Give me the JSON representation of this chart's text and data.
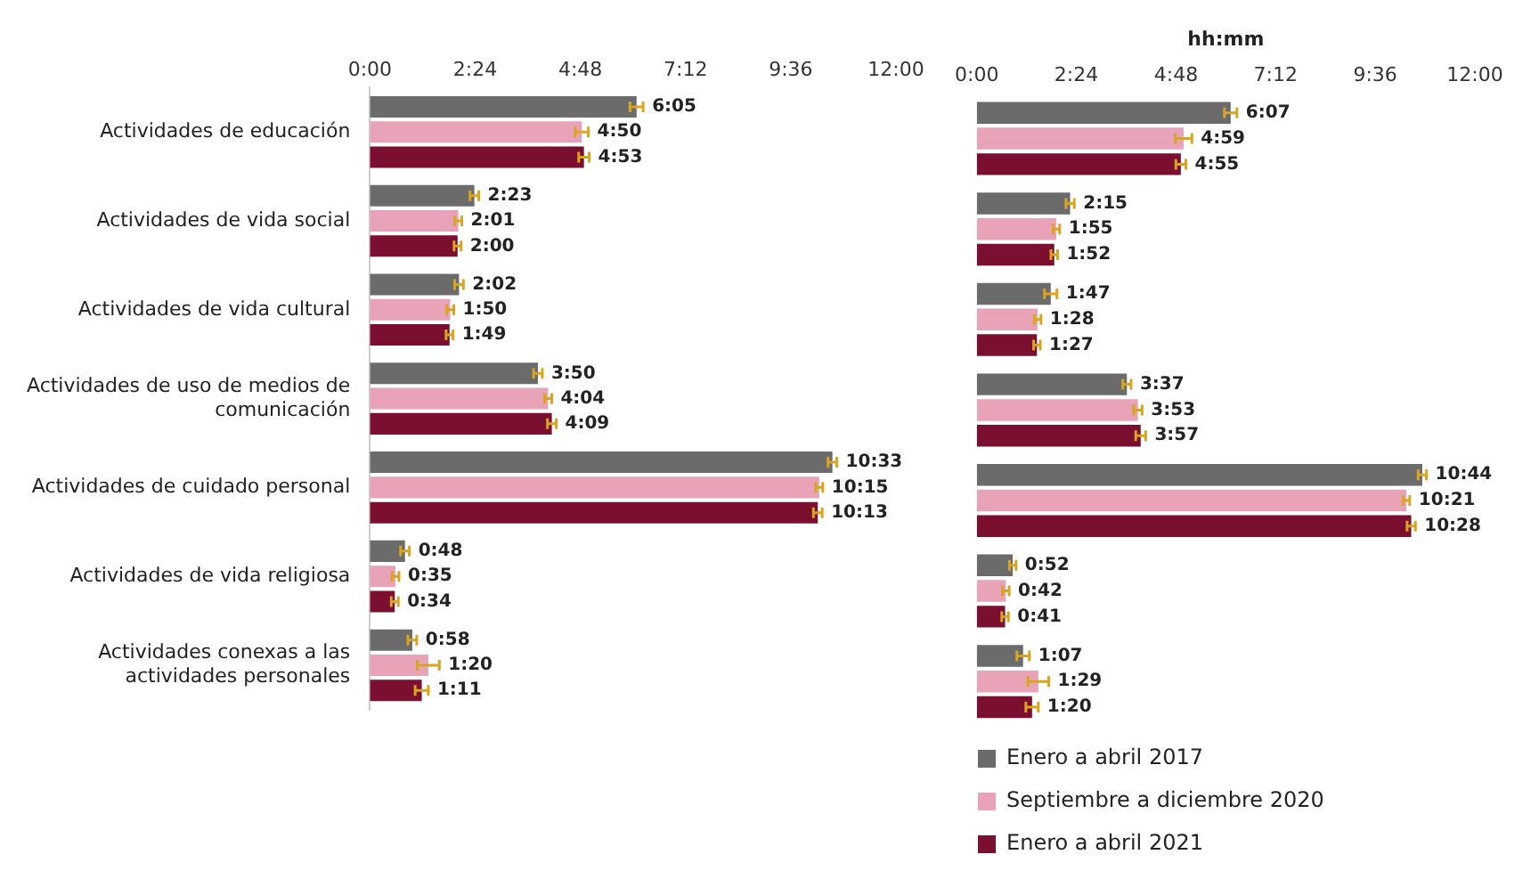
{
  "chart_data": [
    {
      "type": "bar",
      "orientation": "horizontal",
      "categories": [
        "Actividades de educación",
        "Actividades de vida social",
        "Actividades de vida cultural",
        "Actividades de uso de medios de comunicación",
        "Actividades de cuidado personal",
        "Actividades de vida religiosa",
        "Actividades conexas a las actividades personales"
      ],
      "xlim": [
        0,
        12
      ],
      "xticks": [
        {
          "value": 0,
          "label": "0:00"
        },
        {
          "value": 2.4,
          "label": "2:24"
        },
        {
          "value": 4.8,
          "label": "4:48"
        },
        {
          "value": 7.2,
          "label": "7:12"
        },
        {
          "value": 9.6,
          "label": "9:36"
        },
        {
          "value": 12,
          "label": "12:00"
        }
      ],
      "grid": false,
      "legend": false,
      "series": [
        {
          "color": "#6b6b6b",
          "values": [
            6.083,
            2.383,
            2.033,
            3.833,
            10.55,
            0.8,
            0.967
          ],
          "errors": [
            0.15,
            0.1,
            0.1,
            0.1,
            0.1,
            0.1,
            0.1
          ],
          "value_labels": [
            "6:05",
            "2:23",
            "2:02",
            "3:50",
            "10:33",
            "0:48",
            "0:58"
          ]
        },
        {
          "color": "#e8a3b8",
          "values": [
            4.833,
            2.017,
            1.833,
            4.067,
            10.25,
            0.583,
            1.333
          ],
          "errors": [
            0.15,
            0.08,
            0.08,
            0.08,
            0.08,
            0.08,
            0.25
          ],
          "value_labels": [
            "4:50",
            "2:01",
            "1:50",
            "4:04",
            "10:15",
            "0:35",
            "1:20"
          ]
        },
        {
          "color": "#7b0f2f",
          "values": [
            4.883,
            2.0,
            1.817,
            4.15,
            10.217,
            0.567,
            1.183
          ],
          "errors": [
            0.12,
            0.08,
            0.08,
            0.1,
            0.1,
            0.08,
            0.15
          ],
          "value_labels": [
            "4:53",
            "2:00",
            "1:49",
            "4:09",
            "10:13",
            "0:34",
            "1:11"
          ]
        }
      ]
    },
    {
      "type": "bar",
      "orientation": "horizontal",
      "xlabel": "hh:mm",
      "categories": [
        null,
        null,
        null,
        null,
        null,
        null,
        null
      ],
      "tick_labels": "x",
      "xlim": [
        0,
        12
      ],
      "xticks": [
        {
          "value": 0,
          "label": "0:00"
        },
        {
          "value": 2.4,
          "label": "2:24"
        },
        {
          "value": 4.8,
          "label": "4:48"
        },
        {
          "value": 7.2,
          "label": "7:12"
        },
        {
          "value": 9.6,
          "label": "9:36"
        },
        {
          "value": 12,
          "label": "12:00"
        }
      ],
      "grid": false,
      "legend": "bottom",
      "series": [
        {
          "name": "Enero a abril 2017",
          "color": "#6b6b6b",
          "values": [
            6.117,
            2.25,
            1.783,
            3.617,
            10.733,
            0.867,
            1.117
          ],
          "errors": [
            0.15,
            0.1,
            0.15,
            0.1,
            0.1,
            0.08,
            0.15
          ],
          "value_labels": [
            "6:07",
            "2:15",
            "1:47",
            "3:37",
            "10:44",
            "0:52",
            "1:07"
          ]
        },
        {
          "name": "Septiembre a diciembre 2020",
          "color": "#e8a3b8",
          "values": [
            4.983,
            1.917,
            1.467,
            3.883,
            10.35,
            0.7,
            1.483
          ],
          "errors": [
            0.2,
            0.08,
            0.08,
            0.1,
            0.08,
            0.08,
            0.25
          ],
          "value_labels": [
            "4:59",
            "1:55",
            "1:28",
            "3:53",
            "10:21",
            "0:42",
            "1:29"
          ]
        },
        {
          "name": "Enero a abril 2021",
          "color": "#7b0f2f",
          "values": [
            4.917,
            1.867,
            1.45,
            3.95,
            10.467,
            0.683,
            1.333
          ],
          "errors": [
            0.12,
            0.08,
            0.08,
            0.12,
            0.1,
            0.08,
            0.15
          ],
          "value_labels": [
            "4:55",
            "1:52",
            "1:27",
            "3:57",
            "10:28",
            "0:41",
            "1:20"
          ]
        }
      ]
    }
  ]
}
